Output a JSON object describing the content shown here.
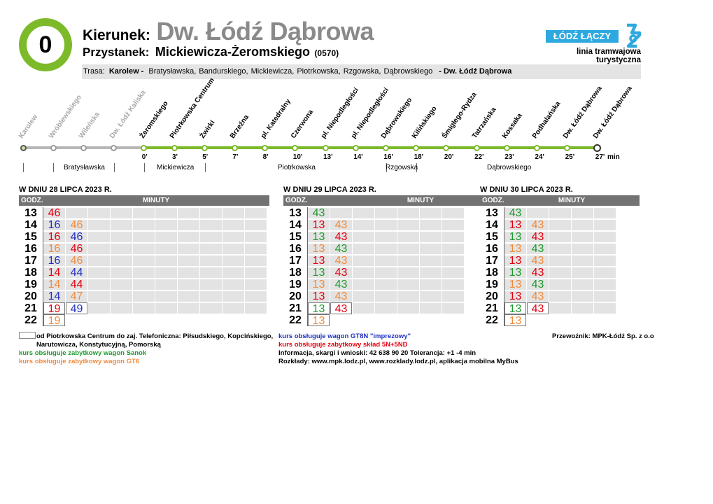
{
  "colors": {
    "green": "#7cba2a",
    "red": "#e3000f",
    "blue": "#1f2fbf",
    "orange": "#f08a3c",
    "dkgreen": "#1e9a2e",
    "black": "#000000",
    "gray": "#a8a8a8",
    "logo": "#2ea9df"
  },
  "header": {
    "line_number": "0",
    "kierunek_label": "Kierunek:",
    "kierunek_value": "Dw. Łódź Dąbrowa",
    "stop_label": "Przystanek:",
    "stop_value": "Mickiewicza-Żeromskiego",
    "stop_code": "(0570)",
    "route_label": "Trasa:",
    "route_start": "Karolew -",
    "route_streets": [
      "Bratysławska,",
      "Bandurskiego,",
      "Mickiewicza,",
      "Piotrkowska,",
      "Rzgowska,",
      "Dąbrowskiego"
    ],
    "route_end": "- Dw. Łódź Dąbrowa",
    "logo_text": "ŁÓDŹ ŁĄCZY",
    "logo_icon": "lodz-logo-icon",
    "tagline": "linia tramwajowa turystyczna"
  },
  "diagram": {
    "stops": [
      {
        "name": "Karolew",
        "time": "",
        "passed": true
      },
      {
        "name": "Wróblewskiego",
        "time": "",
        "passed": true
      },
      {
        "name": "Wileńska",
        "time": "",
        "passed": true
      },
      {
        "name": "Dw. Łódź Kaliska",
        "time": "",
        "passed": true
      },
      {
        "name": "Żeromskiego",
        "time": "0'",
        "passed": false
      },
      {
        "name": "Piotrkowska Centrum",
        "time": "3'",
        "passed": false
      },
      {
        "name": "Żwirki",
        "time": "5'",
        "passed": false
      },
      {
        "name": "Brzeźna",
        "time": "7'",
        "passed": false
      },
      {
        "name": "pl. Katedralny",
        "time": "8'",
        "passed": false
      },
      {
        "name": "Czerwona",
        "time": "10'",
        "passed": false
      },
      {
        "name": "pl. Niepodległości",
        "time": "13'",
        "passed": false
      },
      {
        "name": "pl. Niepodległości",
        "time": "14'",
        "passed": false
      },
      {
        "name": "Dąbrowskiego",
        "time": "16'",
        "passed": false
      },
      {
        "name": "Kilińskiego",
        "time": "18'",
        "passed": false
      },
      {
        "name": "Śmigłego-Rydza",
        "time": "20'",
        "passed": false
      },
      {
        "name": "Tatrzańska",
        "time": "22'",
        "passed": false
      },
      {
        "name": "Kossaka",
        "time": "23'",
        "passed": false
      },
      {
        "name": "Podhalańska",
        "time": "24'",
        "passed": false
      },
      {
        "name": "Dw. Łódź Dąbrowa",
        "time": "25'",
        "passed": false
      },
      {
        "name": "Dw. Łódź Dąbrowa",
        "time": "27'",
        "passed": false
      }
    ],
    "unit": "min",
    "streets": [
      "Bratysławska",
      "Mickiewicza",
      "Piotrkowska",
      "Rzgowska",
      "Dąbrowskiego"
    ]
  },
  "timetables": [
    {
      "title": "W DNIU 28 LIPCA 2023 R.",
      "hour_header": "GODZ.",
      "min_header": "MINUTY",
      "rows": [
        {
          "hour": "13",
          "mins": [
            {
              "v": "46",
              "c": "red",
              "boxed": false
            }
          ]
        },
        {
          "hour": "14",
          "mins": [
            {
              "v": "16",
              "c": "blue",
              "boxed": false
            },
            {
              "v": "46",
              "c": "orange",
              "boxed": false
            }
          ]
        },
        {
          "hour": "15",
          "mins": [
            {
              "v": "16",
              "c": "red",
              "boxed": false
            },
            {
              "v": "46",
              "c": "blue",
              "boxed": false
            }
          ]
        },
        {
          "hour": "16",
          "mins": [
            {
              "v": "16",
              "c": "orange",
              "boxed": false
            },
            {
              "v": "46",
              "c": "red",
              "boxed": false
            }
          ]
        },
        {
          "hour": "17",
          "mins": [
            {
              "v": "16",
              "c": "blue",
              "boxed": false
            },
            {
              "v": "46",
              "c": "orange",
              "boxed": false
            }
          ]
        },
        {
          "hour": "18",
          "mins": [
            {
              "v": "14",
              "c": "red",
              "boxed": false
            },
            {
              "v": "44",
              "c": "blue",
              "boxed": false
            }
          ]
        },
        {
          "hour": "19",
          "mins": [
            {
              "v": "14",
              "c": "orange",
              "boxed": false
            },
            {
              "v": "44",
              "c": "red",
              "boxed": false
            }
          ]
        },
        {
          "hour": "20",
          "mins": [
            {
              "v": "14",
              "c": "blue",
              "boxed": false
            },
            {
              "v": "47",
              "c": "orange",
              "boxed": false
            }
          ]
        },
        {
          "hour": "21",
          "mins": [
            {
              "v": "19",
              "c": "red",
              "boxed": true
            },
            {
              "v": "49",
              "c": "blue",
              "boxed": true
            }
          ]
        },
        {
          "hour": "22",
          "mins": [
            {
              "v": "19",
              "c": "orange",
              "boxed": true
            }
          ]
        }
      ]
    },
    {
      "title": "W DNIU 29 LIPCA 2023 R.",
      "hour_header": "GODZ.",
      "min_header": "MINUTY",
      "rows": [
        {
          "hour": "13",
          "mins": [
            {
              "v": "43",
              "c": "dkgreen",
              "boxed": false
            }
          ]
        },
        {
          "hour": "14",
          "mins": [
            {
              "v": "13",
              "c": "red",
              "boxed": false
            },
            {
              "v": "43",
              "c": "orange",
              "boxed": false
            }
          ]
        },
        {
          "hour": "15",
          "mins": [
            {
              "v": "13",
              "c": "dkgreen",
              "boxed": false
            },
            {
              "v": "43",
              "c": "red",
              "boxed": false
            }
          ]
        },
        {
          "hour": "16",
          "mins": [
            {
              "v": "13",
              "c": "orange",
              "boxed": false
            },
            {
              "v": "43",
              "c": "dkgreen",
              "boxed": false
            }
          ]
        },
        {
          "hour": "17",
          "mins": [
            {
              "v": "13",
              "c": "red",
              "boxed": false
            },
            {
              "v": "43",
              "c": "orange",
              "boxed": false
            }
          ]
        },
        {
          "hour": "18",
          "mins": [
            {
              "v": "13",
              "c": "dkgreen",
              "boxed": false
            },
            {
              "v": "43",
              "c": "red",
              "boxed": false
            }
          ]
        },
        {
          "hour": "19",
          "mins": [
            {
              "v": "13",
              "c": "orange",
              "boxed": false
            },
            {
              "v": "43",
              "c": "dkgreen",
              "boxed": false
            }
          ]
        },
        {
          "hour": "20",
          "mins": [
            {
              "v": "13",
              "c": "red",
              "boxed": false
            },
            {
              "v": "43",
              "c": "orange",
              "boxed": false
            }
          ]
        },
        {
          "hour": "21",
          "mins": [
            {
              "v": "13",
              "c": "dkgreen",
              "boxed": true
            },
            {
              "v": "43",
              "c": "red",
              "boxed": true
            }
          ]
        },
        {
          "hour": "22",
          "mins": [
            {
              "v": "13",
              "c": "orange",
              "boxed": true
            }
          ]
        }
      ]
    },
    {
      "title": "W DNIU 30 LIPCA 2023 R.",
      "hour_header": "GODZ.",
      "min_header": "MINUTY",
      "rows": [
        {
          "hour": "13",
          "mins": [
            {
              "v": "43",
              "c": "dkgreen",
              "boxed": false
            }
          ]
        },
        {
          "hour": "14",
          "mins": [
            {
              "v": "13",
              "c": "red",
              "boxed": false
            },
            {
              "v": "43",
              "c": "orange",
              "boxed": false
            }
          ]
        },
        {
          "hour": "15",
          "mins": [
            {
              "v": "13",
              "c": "dkgreen",
              "boxed": false
            },
            {
              "v": "43",
              "c": "red",
              "boxed": false
            }
          ]
        },
        {
          "hour": "16",
          "mins": [
            {
              "v": "13",
              "c": "orange",
              "boxed": false
            },
            {
              "v": "43",
              "c": "dkgreen",
              "boxed": false
            }
          ]
        },
        {
          "hour": "17",
          "mins": [
            {
              "v": "13",
              "c": "red",
              "boxed": false
            },
            {
              "v": "43",
              "c": "orange",
              "boxed": false
            }
          ]
        },
        {
          "hour": "18",
          "mins": [
            {
              "v": "13",
              "c": "dkgreen",
              "boxed": false
            },
            {
              "v": "43",
              "c": "red",
              "boxed": false
            }
          ]
        },
        {
          "hour": "19",
          "mins": [
            {
              "v": "13",
              "c": "orange",
              "boxed": false
            },
            {
              "v": "43",
              "c": "dkgreen",
              "boxed": false
            }
          ]
        },
        {
          "hour": "20",
          "mins": [
            {
              "v": "13",
              "c": "red",
              "boxed": false
            },
            {
              "v": "43",
              "c": "orange",
              "boxed": false
            }
          ]
        },
        {
          "hour": "21",
          "mins": [
            {
              "v": "13",
              "c": "dkgreen",
              "boxed": true
            },
            {
              "v": "43",
              "c": "red",
              "boxed": true
            }
          ]
        },
        {
          "hour": "22",
          "mins": [
            {
              "v": "13",
              "c": "orange",
              "boxed": true
            }
          ]
        }
      ]
    }
  ],
  "footnotes": {
    "boxed_note_1": "od Piotrkowska Centrum do zaj. Telefoniczna: Piłsudskiego, Kopcińskiego,",
    "boxed_note_2": "Narutowicza, Konstytucyjną, Pomorską",
    "green_note": "kurs obsługuje zabytkowy wagon Sanok",
    "orange_note": "kurs obsługuje zabytkowy wagon GT6",
    "blue_note": "kurs obsługuje wagon GT8N \"imprezowy\"",
    "red_note": "kurs obsługuje zabytkowy skład 5N+5ND",
    "info": "Informacja, skargi i wnioski: 42 638 90 20 Tolerancja: +1 -4 min",
    "schedules": "Rozkłady: www.mpk.lodz.pl, www.rozklady.lodz.pl, aplikacja mobilna MyBus",
    "carrier": "Przewoźnik: MPK-Łódź Sp. z o.o"
  }
}
